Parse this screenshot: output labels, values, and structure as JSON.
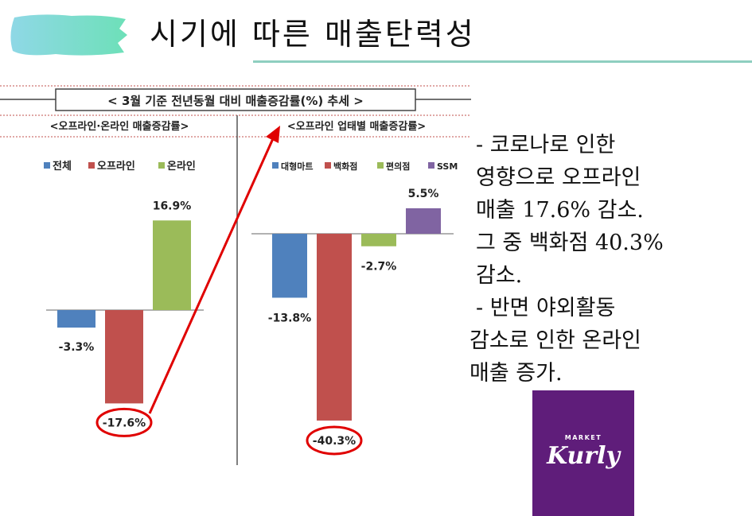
{
  "slide": {
    "title": "시기에 따른 매출탄력성"
  },
  "chart_header": "< 3월 기준 전년동월 대비 매출증감률(%) 추세 >",
  "chart_data": [
    {
      "type": "bar",
      "title": "<오프라인·온라인 매출증감률>",
      "categories": [
        "전체",
        "오프라인",
        "온라인"
      ],
      "values": [
        -3.3,
        -17.6,
        16.9
      ],
      "value_labels": [
        "-3.3%",
        "-17.6%",
        "16.9%"
      ],
      "colors": [
        "#4f81bd",
        "#c0504d",
        "#9bbb59"
      ],
      "legend": [
        "전체",
        "오프라인",
        "온라인"
      ],
      "highlight": "오프라인"
    },
    {
      "type": "bar",
      "title": "<오프라인 업태별 매출증감률>",
      "categories": [
        "대형마트",
        "백화점",
        "편의점",
        "SSM"
      ],
      "values": [
        -13.8,
        -40.3,
        -2.7,
        5.5
      ],
      "value_labels": [
        "-13.8%",
        "-40.3%",
        "-2.7%",
        "5.5%"
      ],
      "colors": [
        "#4f81bd",
        "#c0504d",
        "#9bbb59",
        "#8064a2"
      ],
      "legend": [
        "대형마트",
        "백화점",
        "편의점",
        "SSM"
      ],
      "highlight": "백화점"
    }
  ],
  "notes": [
    "- 코로나로 인한",
    "영향으로 오프라인",
    "매출 17.6% 감소.",
    "그 중 백화점 40.3%",
    "감소.",
    " - 반면 야외활동",
    "감소로 인한 온라인",
    "매출 증가."
  ],
  "logo": {
    "small": "MARKET",
    "main": "Kurly",
    "color": "#5f1d7a"
  }
}
